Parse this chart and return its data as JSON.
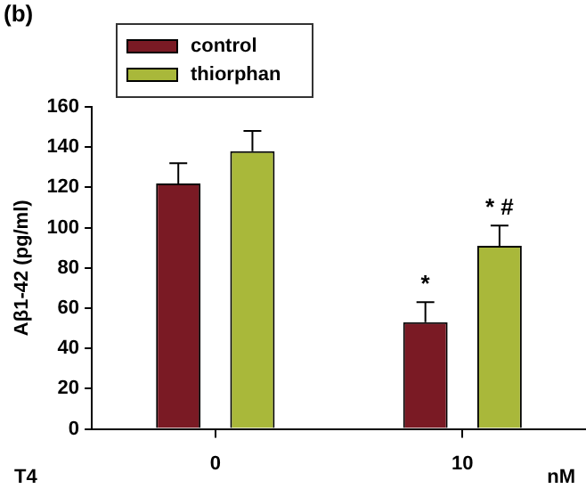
{
  "chart_data": {
    "type": "bar",
    "title": "(b)",
    "ylabel": "Aβ1-42 (pg/ml)",
    "categories": [
      "0",
      "10"
    ],
    "series": [
      {
        "name": "control",
        "color": "#7a1a24",
        "values": [
          122,
          53
        ],
        "errors": [
          [
            122,
            132
          ],
          [
            53,
            63
          ]
        ]
      },
      {
        "name": "thiorphan",
        "color": "#a9b83a",
        "values": [
          138,
          91
        ],
        "errors": [
          [
            138,
            148
          ],
          [
            91,
            101
          ]
        ]
      }
    ],
    "ylim": [
      0,
      160
    ],
    "yticks": [
      0,
      20,
      40,
      60,
      80,
      100,
      120,
      140,
      160
    ],
    "grid": false,
    "legend": "top left",
    "annotations": [
      "T4",
      "nM",
      "*",
      "* #"
    ]
  }
}
